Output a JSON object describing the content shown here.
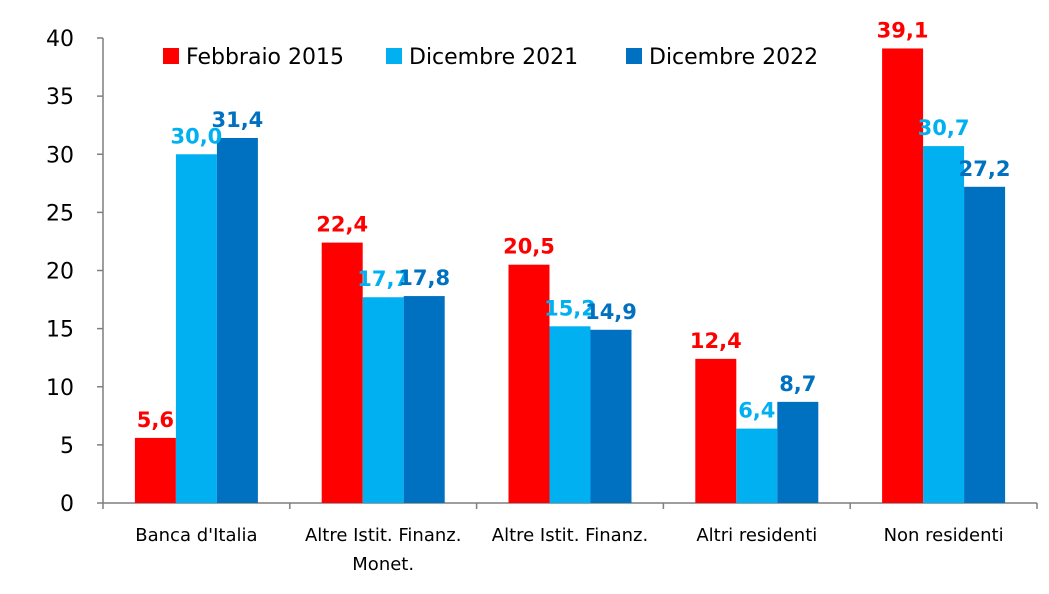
{
  "chart_data": {
    "type": "bar",
    "categories": [
      [
        "Banca d'Italia"
      ],
      [
        "Altre Istit. Finanz.",
        "Monet."
      ],
      [
        "Altre Istit. Finanz."
      ],
      [
        "Altri residenti"
      ],
      [
        "Non residenti"
      ]
    ],
    "series": [
      {
        "name": "Febbraio 2015",
        "color": "#ff0000",
        "values": [
          5.6,
          22.4,
          20.5,
          12.4,
          39.1
        ],
        "labels": [
          "5,6",
          "22,4",
          "20,5",
          "12,4",
          "39,1"
        ]
      },
      {
        "name": "Dicembre 2021",
        "color": "#00b0f0",
        "values": [
          30.0,
          17.7,
          15.2,
          6.4,
          30.7
        ],
        "labels": [
          "30,0",
          "17,7",
          "15,2",
          "6,4",
          "30,7"
        ]
      },
      {
        "name": "Dicembre 2022",
        "color": "#0070c0",
        "values": [
          31.4,
          17.8,
          14.9,
          8.7,
          27.2
        ],
        "labels": [
          "31,4",
          "17,8",
          "14,9",
          "8,7",
          "27,2"
        ]
      }
    ],
    "ylim": [
      0,
      40
    ],
    "yticks": [
      0,
      5,
      10,
      15,
      20,
      25,
      30,
      35,
      40
    ],
    "grid": false,
    "legend_position": "top"
  }
}
